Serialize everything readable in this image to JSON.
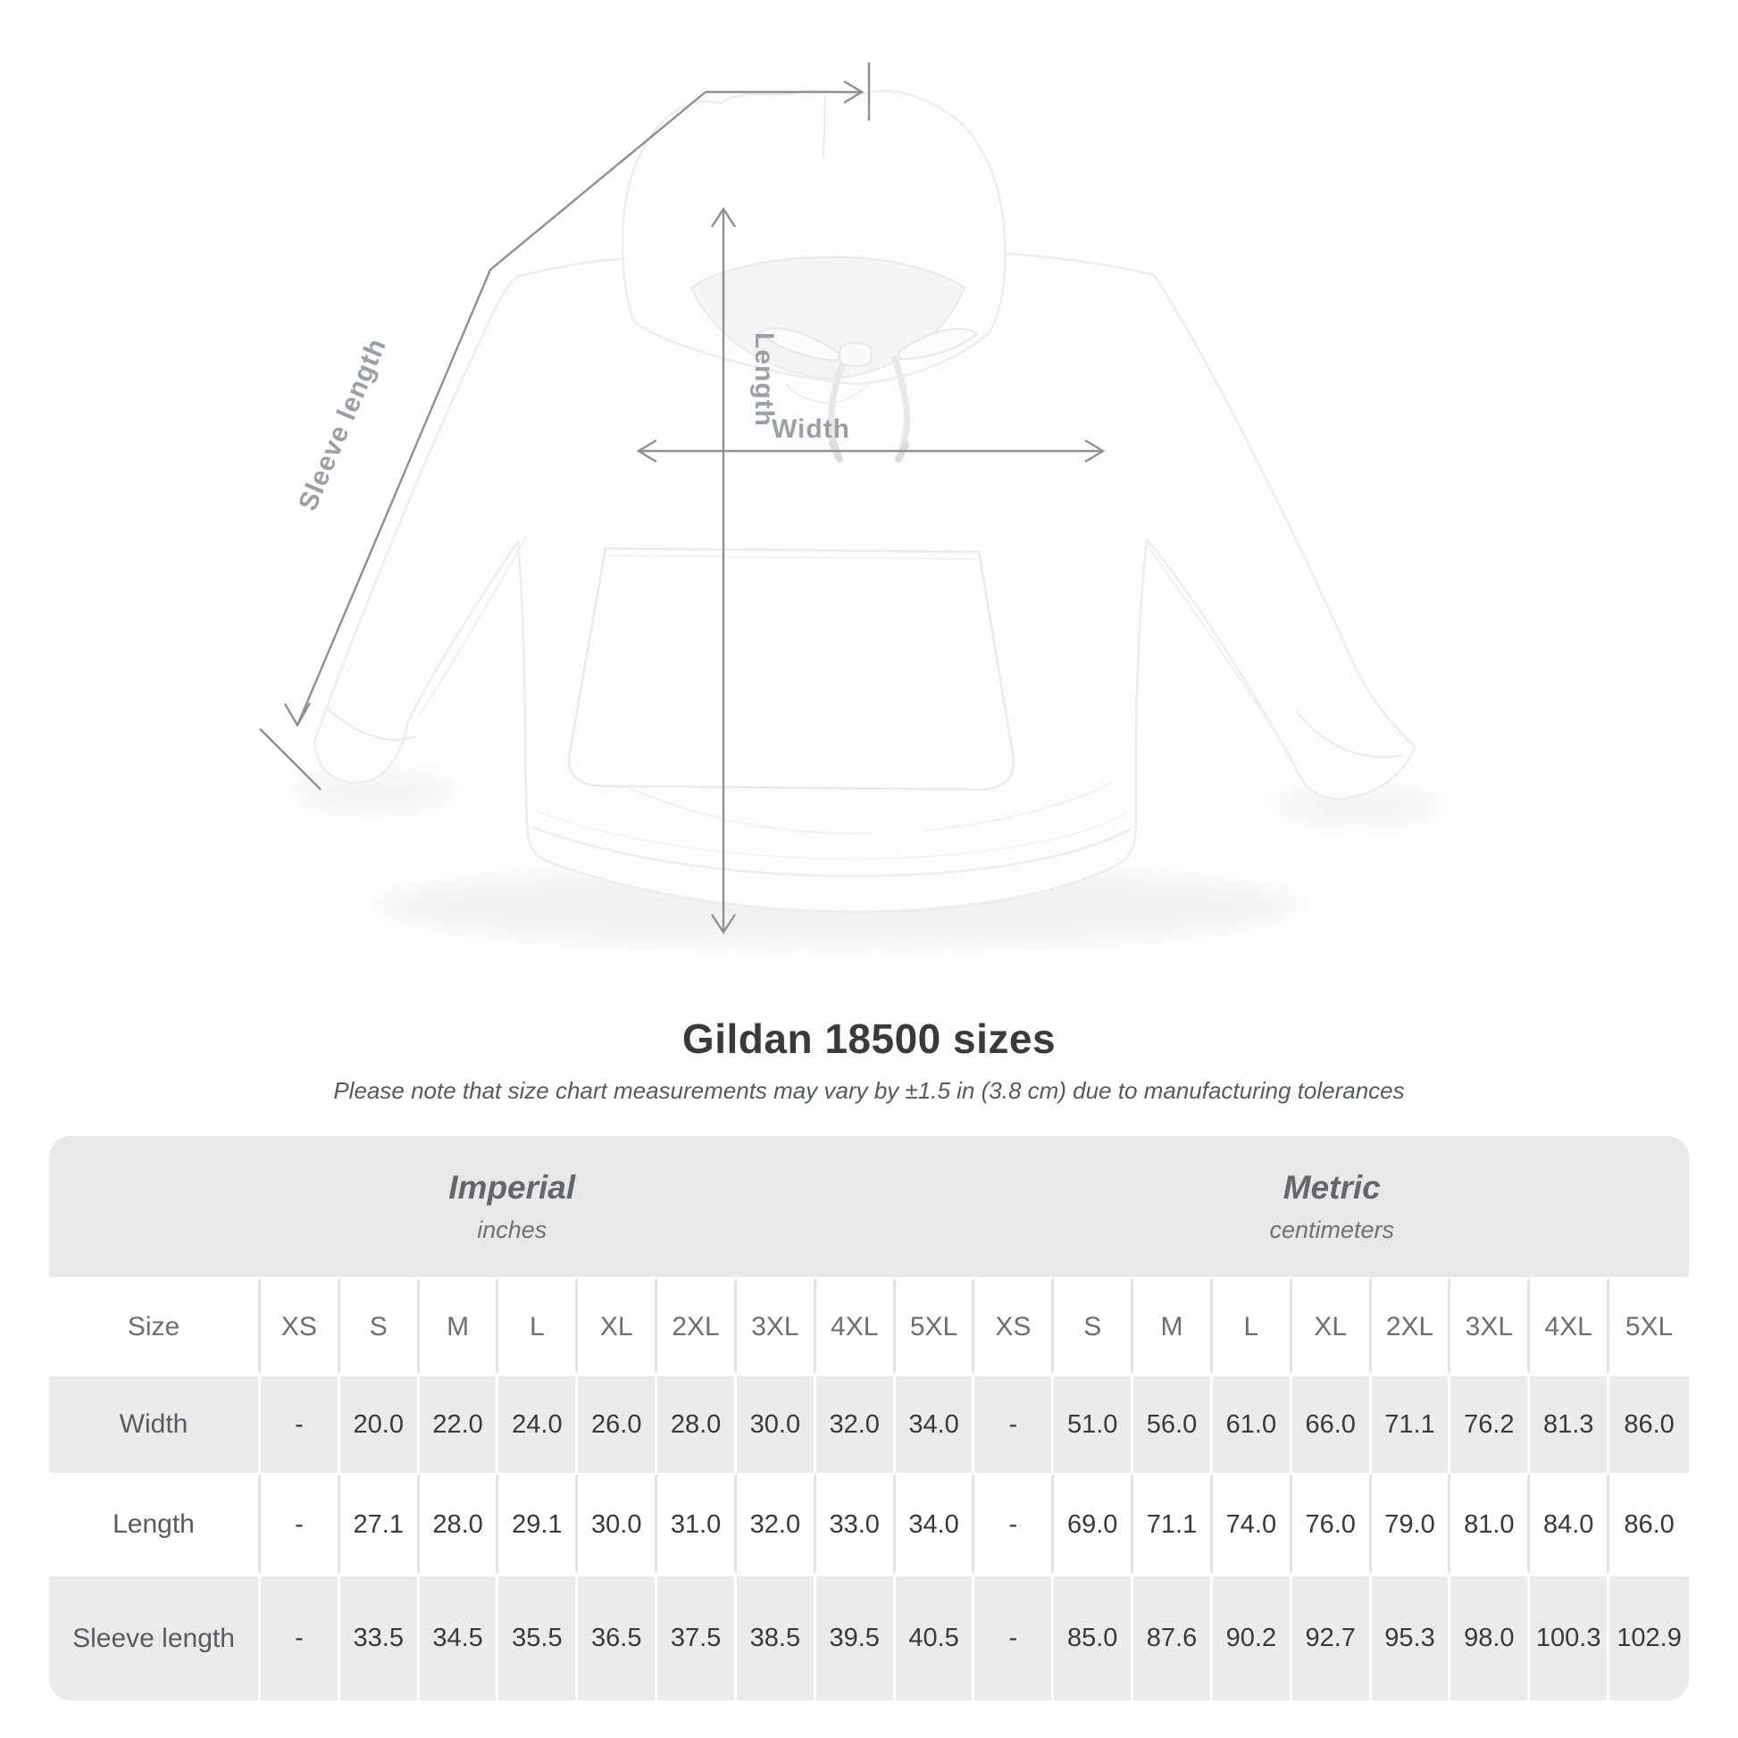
{
  "diagram": {
    "sleeve_label": "Sleeve length",
    "length_label": "Length",
    "width_label": "Width"
  },
  "title": "Gildan 18500 sizes",
  "subtitle": "Please note that size chart measurements may vary by ±1.5 in (3.8 cm) due to manufacturing tolerances",
  "table": {
    "groups": [
      {
        "label": "Imperial",
        "sublabel": "inches"
      },
      {
        "label": "Metric",
        "sublabel": "centimeters"
      }
    ],
    "size_header": "Size",
    "sizes": [
      "XS",
      "S",
      "M",
      "L",
      "XL",
      "2XL",
      "3XL",
      "4XL",
      "5XL"
    ],
    "rows": [
      {
        "label": "Width",
        "imperial": [
          "-",
          "20.0",
          "22.0",
          "24.0",
          "26.0",
          "28.0",
          "30.0",
          "32.0",
          "34.0"
        ],
        "metric": [
          "-",
          "51.0",
          "56.0",
          "61.0",
          "66.0",
          "71.1",
          "76.2",
          "81.3",
          "86.0"
        ]
      },
      {
        "label": "Length",
        "imperial": [
          "-",
          "27.1",
          "28.0",
          "29.1",
          "30.0",
          "31.0",
          "32.0",
          "33.0",
          "34.0"
        ],
        "metric": [
          "-",
          "69.0",
          "71.1",
          "74.0",
          "76.0",
          "79.0",
          "81.0",
          "84.0",
          "86.0"
        ]
      },
      {
        "label": "Sleeve length",
        "imperial": [
          "-",
          "33.5",
          "34.5",
          "35.5",
          "36.5",
          "37.5",
          "38.5",
          "39.5",
          "40.5"
        ],
        "metric": [
          "-",
          "85.0",
          "87.6",
          "90.2",
          "92.7",
          "95.3",
          "98.0",
          "100.3",
          "102.9"
        ]
      }
    ]
  },
  "colors": {
    "annotation_gray": "#8d9196",
    "label_gray": "#9aa0a5",
    "band_bg": "#e8e8e8",
    "gray_row_bg": "#ebebeb",
    "title_text": "#3a3a3a",
    "data_text": "#37393c"
  }
}
